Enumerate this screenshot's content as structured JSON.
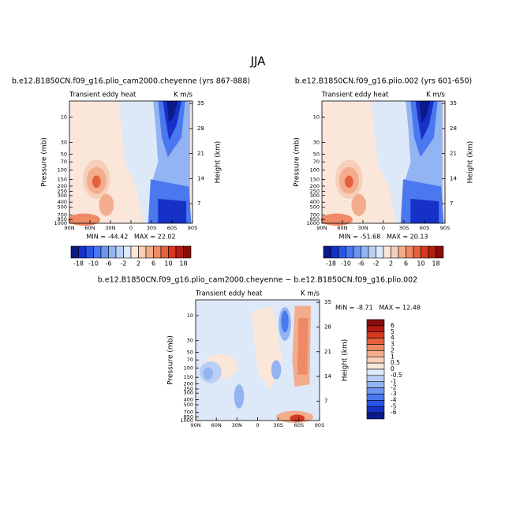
{
  "title": "JJA",
  "chart_data": [
    {
      "type": "contour",
      "title": "b.e12.B1850CN.f09_g16.plio_cam2000.cheyenne (yrs 867-888)",
      "left_label": "Transient eddy heat",
      "right_label": "K m/s",
      "ylabel": "Pressure (mb)",
      "y2label": "Height (km)",
      "xlim": [
        90,
        -90
      ],
      "xticks": [
        {
          "value": 90,
          "label": "90N"
        },
        {
          "value": 60,
          "label": "60N"
        },
        {
          "value": 30,
          "label": "30N"
        },
        0,
        {
          "value": -30,
          "label": "30S"
        },
        {
          "value": -60,
          "label": "60S"
        },
        {
          "value": -90,
          "label": "90S"
        }
      ],
      "ylim": [
        1000,
        5
      ],
      "log_y": true,
      "yticks": [
        10,
        30,
        50,
        70,
        100,
        150,
        200,
        250,
        300,
        400,
        500,
        700,
        850,
        1000
      ],
      "y2lim": [
        1.5,
        35.7
      ],
      "y2ticks": [
        7,
        14,
        21,
        28,
        35
      ],
      "stats": "MIN = -44.42   MAX = 22.02",
      "colorbar": {
        "orientation": "horizontal",
        "colors": [
          "#0b1a8a",
          "#1731c6",
          "#2a56e8",
          "#4a78ef",
          "#6c95f0",
          "#93b4f2",
          "#b9cff5",
          "#dde8f8",
          "#fbe6da",
          "#f7cfb9",
          "#f3ad8d",
          "#ee8a66",
          "#e6603d",
          "#d6391f",
          "#b41c12",
          "#870d0b"
        ],
        "labels": [
          -18,
          -10,
          -6,
          -2,
          2,
          6,
          10,
          18
        ]
      }
    },
    {
      "type": "contour",
      "title": "b.e12.B1850CN.f09_g16.plio.002 (yrs 601-650)",
      "left_label": "Transient eddy heat",
      "right_label": "K m/s",
      "ylabel": "Pressure (mb)",
      "y2label": "Height (km)",
      "xlim": [
        90,
        -90
      ],
      "xticks": [
        {
          "value": 90,
          "label": "90N"
        },
        {
          "value": 60,
          "label": "60N"
        },
        {
          "value": 30,
          "label": "30N"
        },
        0,
        {
          "value": -30,
          "label": "30S"
        },
        {
          "value": -60,
          "label": "60S"
        },
        {
          "value": -90,
          "label": "90S"
        }
      ],
      "ylim": [
        1000,
        5
      ],
      "log_y": true,
      "yticks": [
        10,
        30,
        50,
        70,
        100,
        150,
        200,
        250,
        300,
        400,
        500,
        700,
        850,
        1000
      ],
      "y2lim": [
        1.5,
        35.7
      ],
      "y2ticks": [
        7,
        14,
        21,
        28,
        35
      ],
      "stats": "MIN = -51.68   MAX = 20.13",
      "colorbar": {
        "orientation": "horizontal",
        "colors": [
          "#0b1a8a",
          "#1731c6",
          "#2a56e8",
          "#4a78ef",
          "#6c95f0",
          "#93b4f2",
          "#b9cff5",
          "#dde8f8",
          "#fbe6da",
          "#f7cfb9",
          "#f3ad8d",
          "#ee8a66",
          "#e6603d",
          "#d6391f",
          "#b41c12",
          "#870d0b"
        ],
        "labels": [
          -18,
          -10,
          -6,
          -2,
          2,
          6,
          10,
          18
        ]
      }
    },
    {
      "type": "contour",
      "title": "b.e12.B1850CN.f09_g16.plio_cam2000.cheyenne − b.e12.B1850CN.f09_g16.plio.002",
      "left_label": "Transient eddy heat",
      "right_label": "K m/s",
      "ylabel": "Pressure (mb)",
      "y2label": "Height (km)",
      "xlim": [
        90,
        -90
      ],
      "xticks": [
        {
          "value": 90,
          "label": "90N"
        },
        {
          "value": 60,
          "label": "60N"
        },
        {
          "value": 30,
          "label": "30N"
        },
        0,
        {
          "value": -30,
          "label": "30S"
        },
        {
          "value": -60,
          "label": "60S"
        },
        {
          "value": -90,
          "label": "90S"
        }
      ],
      "ylim": [
        1000,
        5
      ],
      "log_y": true,
      "yticks": [
        10,
        30,
        50,
        70,
        100,
        150,
        200,
        250,
        300,
        400,
        500,
        700,
        850,
        1000
      ],
      "y2lim": [
        1.5,
        35.7
      ],
      "y2ticks": [
        7,
        14,
        21,
        28,
        35
      ],
      "stats": "MIN = -8.71   MAX = 12.48",
      "colorbar": {
        "orientation": "vertical",
        "colors": [
          "#870d0b",
          "#b41c12",
          "#d6391f",
          "#e6603d",
          "#ee8a66",
          "#f3ad8d",
          "#f7cfb9",
          "#fbe6da",
          "#dde8f8",
          "#b9cff5",
          "#93b4f2",
          "#6c95f0",
          "#4a78ef",
          "#2a56e8",
          "#1731c6",
          "#0b1a8a"
        ],
        "labels": [
          6,
          5,
          4,
          3,
          2,
          1,
          0.5,
          0,
          -0.5,
          -1,
          -2,
          -3,
          -4,
          -5,
          -6
        ]
      }
    }
  ]
}
